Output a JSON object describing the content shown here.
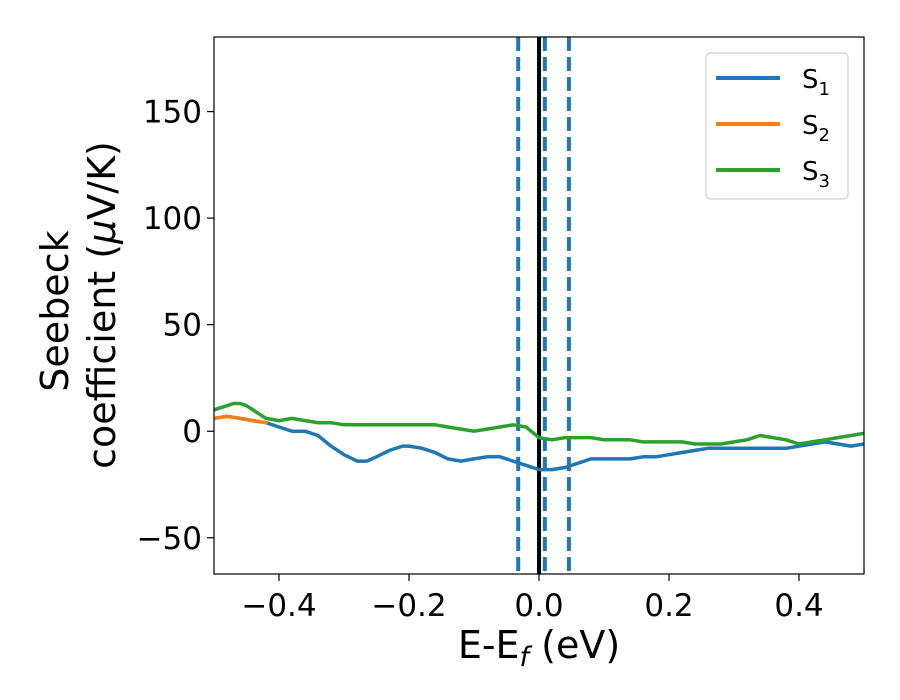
{
  "chart_data": {
    "type": "line",
    "xlabel": {
      "main": "E-E",
      "sub": "f",
      "unit": " (eV)"
    },
    "ylabel": {
      "line1": "Seebeck",
      "line2": "coefficient  (",
      "mu": "μ",
      "line2_end": "V/K)"
    },
    "xlim": [
      -0.5,
      0.5
    ],
    "ylim": [
      -67,
      185
    ],
    "xticks": [
      -0.4,
      -0.2,
      0.0,
      0.2,
      0.4
    ],
    "xtick_labels": [
      "−0.4",
      "−0.2",
      "0.0",
      "0.2",
      "0.4"
    ],
    "yticks": [
      -50,
      0,
      50,
      100,
      150
    ],
    "ytick_labels": [
      "−50",
      "0",
      "50",
      "100",
      "150"
    ],
    "legend_position": "top-right",
    "vlines": [
      {
        "x": -0.032,
        "color": "#1f77b4",
        "style": "dashed"
      },
      {
        "x": 0.0,
        "color": "#000000",
        "style": "solid"
      },
      {
        "x": 0.009,
        "color": "#1f77b4",
        "style": "dashed"
      },
      {
        "x": 0.046,
        "color": "#1f77b4",
        "style": "dashed"
      }
    ],
    "series": [
      {
        "name": "S",
        "sub": "1",
        "color": "#1f77b4",
        "x": [
          -0.5,
          -0.48,
          -0.46,
          -0.44,
          -0.42,
          -0.4,
          -0.38,
          -0.36,
          -0.34,
          -0.32,
          -0.3,
          -0.28,
          -0.265,
          -0.25,
          -0.23,
          -0.21,
          -0.2,
          -0.18,
          -0.16,
          -0.14,
          -0.12,
          -0.1,
          -0.08,
          -0.06,
          -0.04,
          -0.02,
          0.0,
          0.02,
          0.04,
          0.06,
          0.08,
          0.1,
          0.12,
          0.14,
          0.16,
          0.18,
          0.2,
          0.22,
          0.24,
          0.26,
          0.28,
          0.3,
          0.32,
          0.34,
          0.36,
          0.38,
          0.4,
          0.42,
          0.44,
          0.46,
          0.48,
          0.5
        ],
        "values": [
          6,
          7,
          6,
          5,
          4,
          2,
          0,
          0,
          -2,
          -7,
          -11,
          -14,
          -14,
          -12,
          -9,
          -7,
          -7,
          -8,
          -10,
          -13,
          -14,
          -13,
          -12,
          -12,
          -14,
          -16,
          -18,
          -18,
          -17,
          -15,
          -13,
          -13,
          -13,
          -13,
          -12,
          -12,
          -11,
          -10,
          -9,
          -8,
          -8,
          -8,
          -8,
          -8,
          -8,
          -8,
          -7,
          -6,
          -5,
          -6,
          -7,
          -6
        ]
      },
      {
        "name": "S",
        "sub": "2",
        "color": "#ff7f0e",
        "x": [
          -0.5,
          -0.48,
          -0.46,
          -0.44,
          -0.42
        ],
        "values": [
          6,
          7,
          6,
          5,
          4
        ]
      },
      {
        "name": "S",
        "sub": "3",
        "color": "#2ca02c",
        "x": [
          -0.5,
          -0.48,
          -0.47,
          -0.46,
          -0.45,
          -0.44,
          -0.43,
          -0.42,
          -0.4,
          -0.38,
          -0.36,
          -0.34,
          -0.32,
          -0.3,
          -0.28,
          -0.26,
          -0.24,
          -0.22,
          -0.2,
          -0.18,
          -0.16,
          -0.14,
          -0.12,
          -0.1,
          -0.08,
          -0.06,
          -0.04,
          -0.02,
          0.0,
          0.02,
          0.04,
          0.06,
          0.08,
          0.1,
          0.12,
          0.14,
          0.16,
          0.18,
          0.2,
          0.22,
          0.24,
          0.26,
          0.28,
          0.3,
          0.32,
          0.34,
          0.36,
          0.38,
          0.4,
          0.42,
          0.44,
          0.46,
          0.48,
          0.5
        ],
        "values": [
          10,
          12,
          13,
          13,
          12,
          10,
          8,
          6,
          5,
          6,
          5,
          4,
          4,
          3,
          3,
          3,
          3,
          3,
          3,
          3,
          3,
          2,
          1,
          0,
          1,
          2,
          3,
          2,
          -3,
          -4,
          -3,
          -3,
          -3,
          -4,
          -4,
          -4,
          -5,
          -5,
          -5,
          -5,
          -6,
          -6,
          -6,
          -5,
          -4,
          -2,
          -3,
          -4,
          -6,
          -5,
          -4,
          -3,
          -2,
          -1
        ]
      }
    ]
  }
}
